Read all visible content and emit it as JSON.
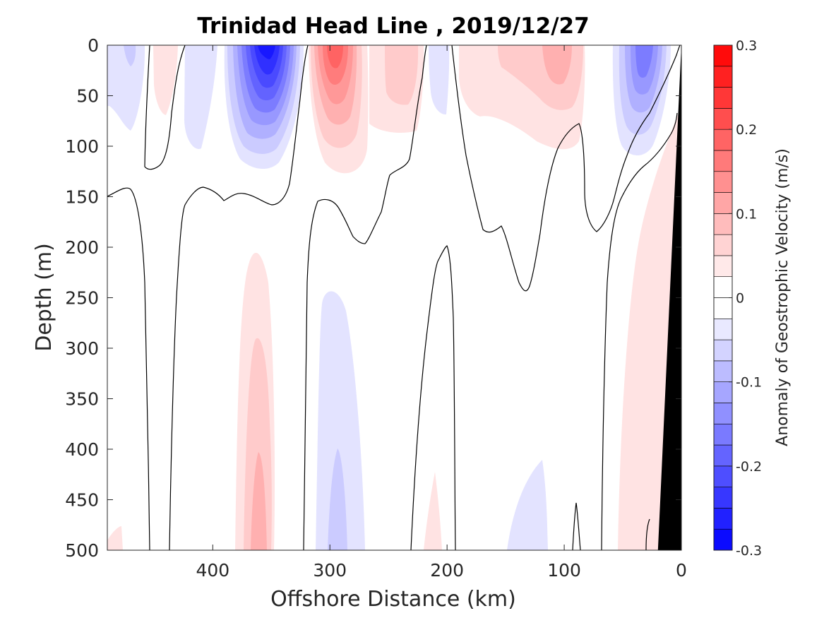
{
  "chart_data": {
    "type": "heatmap",
    "title": "Trinidad Head Line , 2019/12/27",
    "xlabel": "Offshore Distance (km)",
    "ylabel": "Depth (m)",
    "xlim": [
      490,
      0
    ],
    "ylim": [
      0,
      500
    ],
    "x_direction": "reversed",
    "y_direction": "reversed",
    "xticks": [
      400,
      300,
      200,
      100,
      0
    ],
    "yticks": [
      0,
      50,
      100,
      150,
      200,
      250,
      300,
      350,
      400,
      450,
      500
    ],
    "grid": false,
    "colorbar": {
      "label": "Anomaly of Geostrophic Velocity (m/s)",
      "range": [
        -0.3,
        0.3
      ],
      "levels": 24,
      "ticks": [
        0.3,
        0.2,
        0.1,
        0,
        -0.1,
        -0.2,
        -0.3
      ],
      "tick_labels": [
        "0.3",
        "0.2",
        "0.1",
        "0",
        "-0.1",
        "-0.2",
        "-0.3"
      ],
      "colormap": "blue-white-red",
      "neg_color": "#0000ff",
      "pos_color": "#ff0000",
      "zero_color": "#ffffff"
    },
    "bathymetry_color": "#000000",
    "bathymetry": [
      {
        "x": 20,
        "depth": 500
      },
      {
        "x": 0,
        "depth": 0
      },
      {
        "x": 0,
        "depth": 500
      }
    ],
    "features": [
      {
        "x": 355,
        "depth": 12,
        "value": -0.25
      },
      {
        "x": 470,
        "depth": 30,
        "value": -0.06
      },
      {
        "x": 410,
        "depth": 40,
        "value": -0.03
      },
      {
        "x": 430,
        "depth": 25,
        "value": 0.03
      },
      {
        "x": 290,
        "depth": 15,
        "value": 0.14
      },
      {
        "x": 245,
        "depth": 40,
        "value": 0.04
      },
      {
        "x": 212,
        "depth": 40,
        "value": -0.03
      },
      {
        "x": 120,
        "depth": 25,
        "value": 0.08
      },
      {
        "x": 160,
        "depth": 40,
        "value": 0.04
      },
      {
        "x": 37,
        "depth": 30,
        "value": -0.12
      },
      {
        "x": 355,
        "depth": 460,
        "value": 0.08
      },
      {
        "x": 290,
        "depth": 470,
        "value": -0.05
      },
      {
        "x": 210,
        "depth": 470,
        "value": 0.03
      },
      {
        "x": 130,
        "depth": 470,
        "value": -0.03
      },
      {
        "x": 45,
        "depth": 330,
        "value": 0.03
      },
      {
        "x": 480,
        "depth": 490,
        "value": 0.03
      }
    ]
  }
}
